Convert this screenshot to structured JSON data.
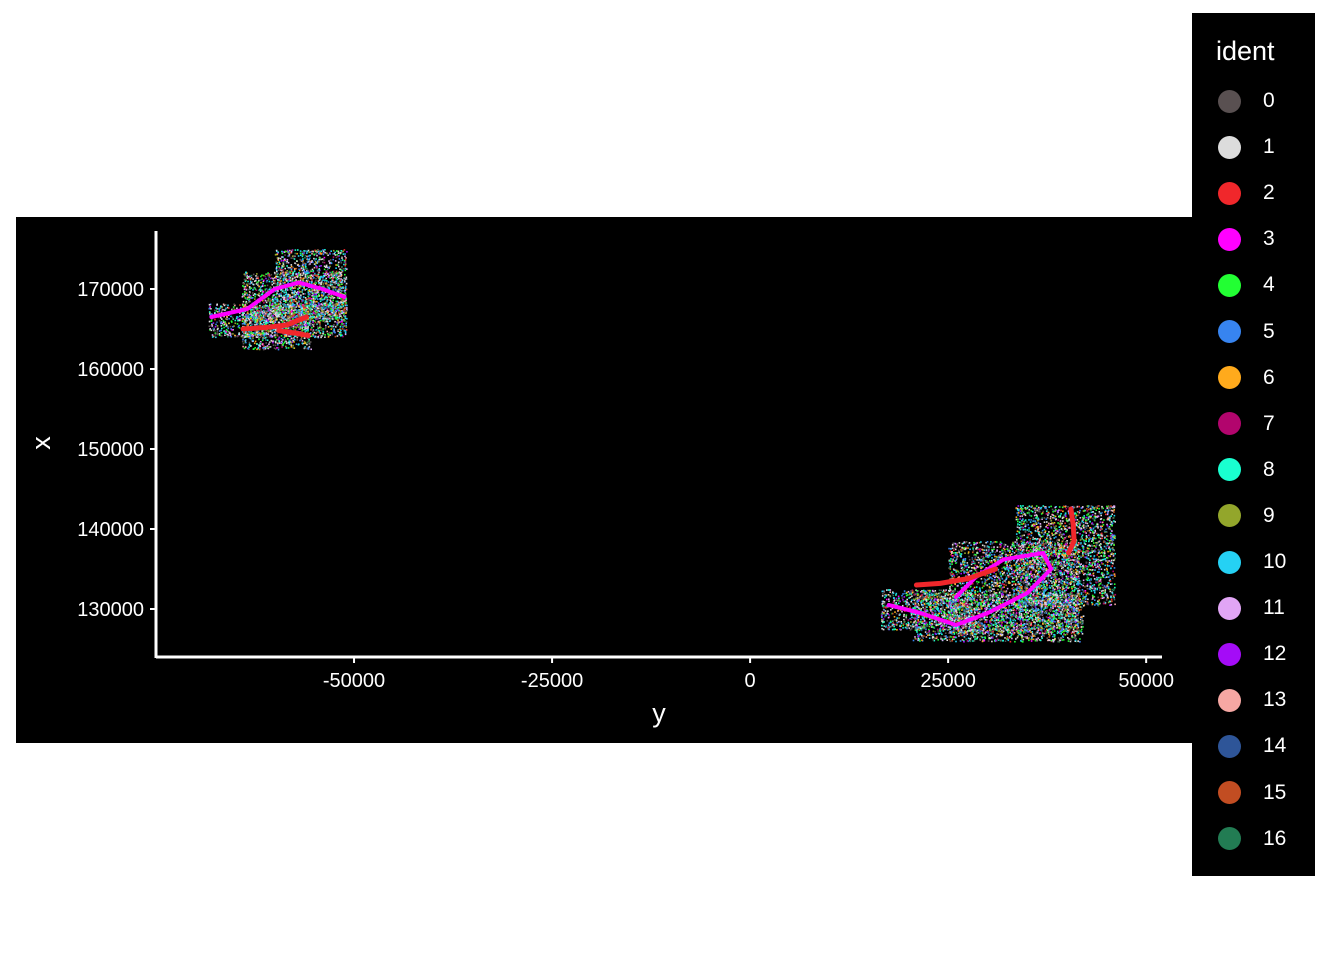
{
  "chart_data": {
    "type": "scatter",
    "xlabel": "y",
    "ylabel": "x",
    "xlim": [
      -75000,
      52000
    ],
    "ylim": [
      124000,
      177500
    ],
    "x_ticks": [
      -50000,
      -25000,
      0,
      25000,
      50000
    ],
    "x_tick_labels": [
      "-50000",
      "-25000",
      "0",
      "25000",
      "50000"
    ],
    "y_ticks": [
      130000,
      140000,
      150000,
      160000,
      170000
    ],
    "y_tick_labels": [
      "130000",
      "140000",
      "150000",
      "160000",
      "170000"
    ],
    "background": "#000000",
    "axis_color": "#ffffff",
    "legend": {
      "title": "ident",
      "placement": "right",
      "entries": [
        {
          "label": "0",
          "color": "#595051"
        },
        {
          "label": "1",
          "color": "#dcdcdc"
        },
        {
          "label": "2",
          "color": "#f0272b"
        },
        {
          "label": "3",
          "color": "#ff00ff"
        },
        {
          "label": "4",
          "color": "#22ff33"
        },
        {
          "label": "5",
          "color": "#3784f0"
        },
        {
          "label": "6",
          "color": "#ffaa1c"
        },
        {
          "label": "7",
          "color": "#b2056d"
        },
        {
          "label": "8",
          "color": "#19ffd0"
        },
        {
          "label": "9",
          "color": "#93a62b"
        },
        {
          "label": "10",
          "color": "#25d1f4"
        },
        {
          "label": "11",
          "color": "#e1a5f5"
        },
        {
          "label": "12",
          "color": "#a40cf7"
        },
        {
          "label": "13",
          "color": "#f6a7a3"
        },
        {
          "label": "14",
          "color": "#2e5598"
        },
        {
          "label": "15",
          "color": "#c24d22"
        },
        {
          "label": "16",
          "color": "#227c53"
        }
      ]
    },
    "sections": [
      {
        "name": "upper-left",
        "tiles": [
          {
            "x0": -68400,
            "x1": -51000,
            "y0": 164000,
            "y1": 168200
          },
          {
            "x0": -64200,
            "x1": -51000,
            "y0": 166000,
            "y1": 172200
          },
          {
            "x0": -60000,
            "x1": -51000,
            "y0": 166500,
            "y1": 175000
          },
          {
            "x0": -64200,
            "x1": -55500,
            "y0": 162500,
            "y1": 168000
          }
        ],
        "curves": [
          {
            "ident": "3",
            "points": [
              [
                -68000,
                166500
              ],
              [
                -63500,
                167500
              ],
              [
                -60000,
                170000
              ],
              [
                -57000,
                170800
              ],
              [
                -54000,
                170000
              ],
              [
                -51200,
                169000
              ]
            ]
          },
          {
            "ident": "2",
            "points": [
              [
                -64000,
                165000
              ],
              [
                -61000,
                165200
              ],
              [
                -58500,
                165500
              ],
              [
                -56000,
                166500
              ]
            ]
          },
          {
            "ident": "2",
            "points": [
              [
                -59500,
                164800
              ],
              [
                -57500,
                164500
              ],
              [
                -55800,
                164200
              ]
            ]
          }
        ]
      },
      {
        "name": "lower-right",
        "tiles": [
          {
            "x0": 16500,
            "x1": 28000,
            "y0": 127500,
            "y1": 132500
          },
          {
            "x0": 20500,
            "x1": 42000,
            "y0": 126000,
            "y1": 132000
          },
          {
            "x0": 25000,
            "x1": 41500,
            "y0": 127000,
            "y1": 138500
          },
          {
            "x0": 33500,
            "x1": 46000,
            "y0": 130500,
            "y1": 143000
          }
        ],
        "curves": [
          {
            "ident": "3",
            "points": [
              [
                17500,
                130500
              ],
              [
                21500,
                129500
              ],
              [
                26000,
                128000
              ],
              [
                30000,
                129500
              ],
              [
                35000,
                132000
              ],
              [
                38000,
                135000
              ],
              [
                37000,
                137000
              ],
              [
                32000,
                136200
              ],
              [
                28500,
                134000
              ],
              [
                26000,
                131500
              ]
            ]
          },
          {
            "ident": "2",
            "points": [
              [
                21000,
                133000
              ],
              [
                24000,
                133200
              ],
              [
                27500,
                133800
              ],
              [
                31000,
                135000
              ]
            ]
          },
          {
            "ident": "2",
            "points": [
              [
                40500,
                142500
              ],
              [
                40800,
                140500
              ],
              [
                40900,
                138500
              ],
              [
                40200,
                137000
              ]
            ]
          }
        ]
      }
    ]
  }
}
